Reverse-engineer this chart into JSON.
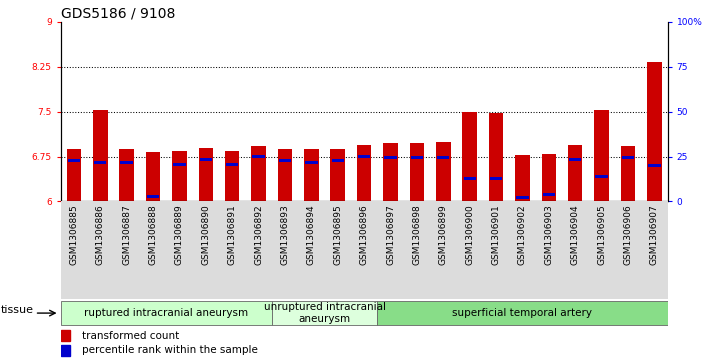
{
  "title": "GDS5186 / 9108",
  "samples": [
    "GSM1306885",
    "GSM1306886",
    "GSM1306887",
    "GSM1306888",
    "GSM1306889",
    "GSM1306890",
    "GSM1306891",
    "GSM1306892",
    "GSM1306893",
    "GSM1306894",
    "GSM1306895",
    "GSM1306896",
    "GSM1306897",
    "GSM1306898",
    "GSM1306899",
    "GSM1306900",
    "GSM1306901",
    "GSM1306902",
    "GSM1306903",
    "GSM1306904",
    "GSM1306905",
    "GSM1306906",
    "GSM1306907"
  ],
  "bar_values": [
    6.88,
    7.52,
    6.88,
    6.83,
    6.85,
    6.9,
    6.85,
    6.92,
    6.88,
    6.87,
    6.88,
    6.95,
    6.97,
    6.97,
    7.0,
    7.5,
    7.47,
    6.77,
    6.79,
    6.95,
    7.52,
    6.93,
    8.33
  ],
  "blue_dot_values": [
    6.69,
    6.65,
    6.65,
    6.08,
    6.62,
    6.7,
    6.62,
    6.75,
    6.68,
    6.65,
    6.68,
    6.75,
    6.74,
    6.74,
    6.74,
    6.38,
    6.38,
    6.07,
    6.12,
    6.7,
    6.42,
    6.73,
    6.6
  ],
  "bar_color": "#cc0000",
  "dot_color": "#0000cc",
  "ylim_left": [
    6,
    9
  ],
  "ylim_right": [
    0,
    100
  ],
  "yticks_left": [
    6,
    6.75,
    7.5,
    8.25,
    9
  ],
  "yticks_right": [
    0,
    25,
    50,
    75,
    100
  ],
  "ytick_labels_right": [
    "0",
    "25",
    "50",
    "75",
    "100%"
  ],
  "hlines": [
    6.75,
    7.5,
    8.25
  ],
  "groups": [
    {
      "label": "ruptured intracranial aneurysm",
      "start": 0,
      "end": 8,
      "color": "#ccffcc"
    },
    {
      "label": "unruptured intracranial\naneurysm",
      "start": 8,
      "end": 12,
      "color": "#ddffdd"
    },
    {
      "label": "superficial temporal artery",
      "start": 12,
      "end": 23,
      "color": "#88dd88"
    }
  ],
  "tissue_label": "tissue",
  "legend_items": [
    {
      "label": "transformed count",
      "color": "#cc0000"
    },
    {
      "label": "percentile rank within the sample",
      "color": "#0000cc"
    }
  ],
  "bar_width": 0.55,
  "background_color": "#ffffff",
  "title_fontsize": 10,
  "tick_fontsize": 6.5,
  "group_fontsize": 7.5
}
